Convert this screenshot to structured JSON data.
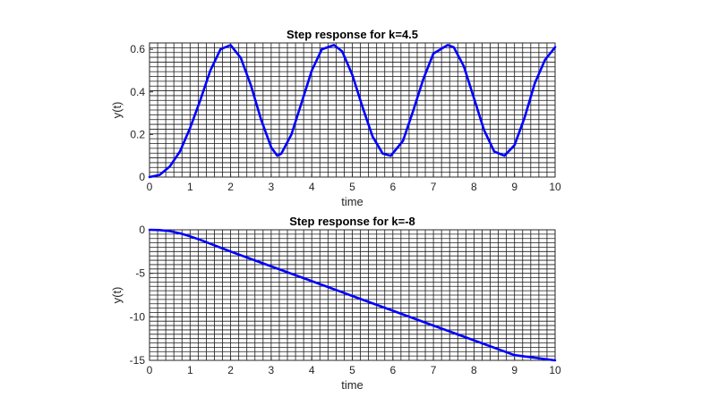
{
  "chart_data": [
    {
      "type": "line",
      "title": "Step response for k=4.5",
      "xlabel": "time",
      "ylabel": "y(t)",
      "xlim": [
        0,
        10
      ],
      "ylim": [
        0,
        0.63
      ],
      "xticks": [
        0,
        1,
        2,
        3,
        4,
        5,
        6,
        7,
        8,
        9,
        10
      ],
      "yticks": [
        0,
        0.2,
        0.4,
        0.6
      ],
      "ytick_labels": [
        "0",
        "0.2",
        "0.4",
        "0.6"
      ],
      "grid": "minor",
      "line_color": "#0000ff",
      "series": [
        {
          "x": [
            0,
            0.25,
            0.5,
            0.75,
            1.0,
            1.25,
            1.5,
            1.75,
            2.0,
            2.25,
            2.5,
            2.75,
            3.0,
            3.15,
            3.25,
            3.5,
            3.75,
            4.0,
            4.25,
            4.55,
            4.75,
            5.0,
            5.25,
            5.5,
            5.75,
            5.95,
            6.25,
            6.5,
            6.75,
            7.0,
            7.35,
            7.5,
            7.75,
            8.0,
            8.25,
            8.5,
            8.75,
            9.0,
            9.25,
            9.5,
            9.75,
            10.0
          ],
          "y": [
            0,
            0.01,
            0.05,
            0.12,
            0.23,
            0.36,
            0.5,
            0.6,
            0.62,
            0.56,
            0.43,
            0.27,
            0.14,
            0.1,
            0.11,
            0.2,
            0.35,
            0.5,
            0.6,
            0.62,
            0.59,
            0.48,
            0.33,
            0.19,
            0.11,
            0.1,
            0.17,
            0.31,
            0.46,
            0.58,
            0.62,
            0.61,
            0.52,
            0.37,
            0.22,
            0.12,
            0.1,
            0.15,
            0.28,
            0.44,
            0.55,
            0.61
          ]
        }
      ]
    },
    {
      "type": "line",
      "title": "Step response for k=-8",
      "xlabel": "time",
      "ylabel": "y(t)",
      "xlim": [
        0,
        10
      ],
      "ylim": [
        -15,
        0
      ],
      "xticks": [
        0,
        1,
        2,
        3,
        4,
        5,
        6,
        7,
        8,
        9,
        10
      ],
      "yticks": [
        -15,
        -10,
        -5,
        0
      ],
      "ytick_labels": [
        "-15",
        "-10",
        "-5",
        "0"
      ],
      "grid": "minor",
      "line_color": "#0000ff",
      "series": [
        {
          "x": [
            0,
            0.25,
            0.5,
            0.75,
            1.0,
            1.25,
            1.5,
            2.0,
            2.5,
            3.0,
            4.0,
            5.0,
            6.0,
            7.0,
            8.0,
            9.0,
            10.0
          ],
          "y": [
            0,
            -0.03,
            -0.15,
            -0.4,
            -0.75,
            -1.15,
            -1.6,
            -2.5,
            -3.35,
            -4.2,
            -5.9,
            -7.6,
            -9.3,
            -11.0,
            -12.7,
            -14.4,
            -15.0
          ]
        }
      ]
    }
  ]
}
